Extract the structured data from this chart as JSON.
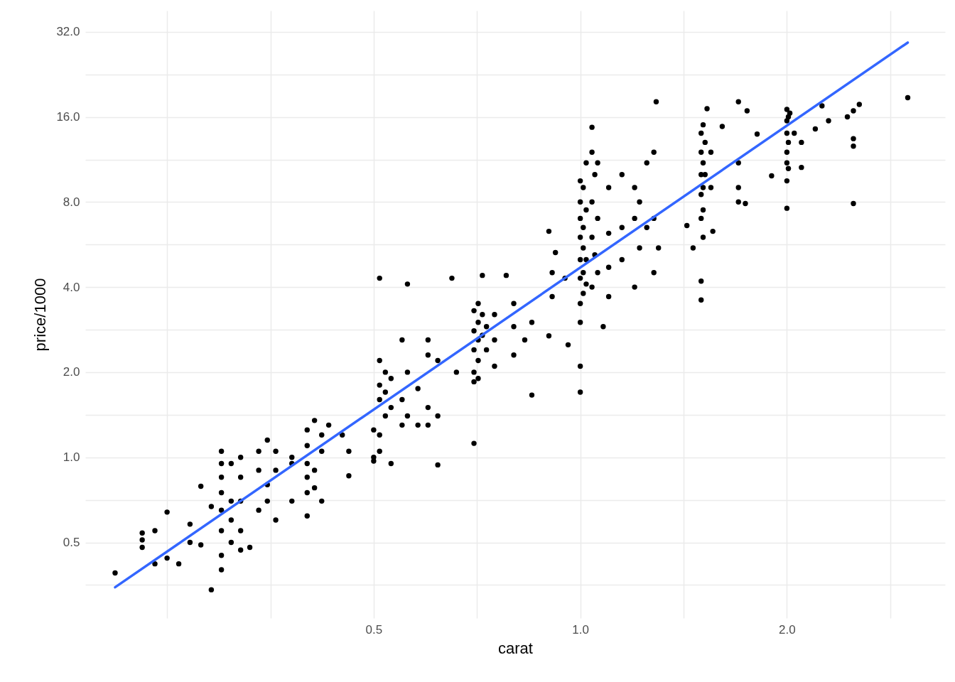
{
  "chart_data": {
    "type": "scatter",
    "xlabel": "carat",
    "ylabel": "price/1000",
    "log": "xy",
    "grid": true,
    "xlim": [
      0.19,
      3.4
    ],
    "ylim": [
      0.27,
      38
    ],
    "xticks": [
      {
        "value": 0.25,
        "label": null
      },
      {
        "value": 0.354,
        "label": null
      },
      {
        "value": 0.5,
        "label": "0.5"
      },
      {
        "value": 0.707,
        "label": null
      },
      {
        "value": 1,
        "label": "1.0"
      },
      {
        "value": 1.414,
        "label": null
      },
      {
        "value": 2,
        "label": "2.0"
      },
      {
        "value": 2.83,
        "label": null
      }
    ],
    "yticks": [
      {
        "value": 0.354,
        "label": null
      },
      {
        "value": 0.5,
        "label": "0.5"
      },
      {
        "value": 0.707,
        "label": null
      },
      {
        "value": 1,
        "label": "1.0"
      },
      {
        "value": 1.414,
        "label": null
      },
      {
        "value": 2,
        "label": "2.0"
      },
      {
        "value": 2.83,
        "label": null
      },
      {
        "value": 4,
        "label": "4.0"
      },
      {
        "value": 5.66,
        "label": null
      },
      {
        "value": 8,
        "label": "8.0"
      },
      {
        "value": 11.3,
        "label": null
      },
      {
        "value": 16,
        "label": "16.0"
      },
      {
        "value": 22.6,
        "label": null
      },
      {
        "value": 32,
        "label": "32.0"
      }
    ],
    "series": [
      {
        "marker": "circle",
        "color": "#000000",
        "x": [
          0.21,
          0.23,
          0.23,
          0.23,
          0.24,
          0.24,
          0.25,
          0.25,
          0.26,
          0.27,
          0.27,
          0.28,
          0.28,
          0.29,
          0.29,
          0.3,
          0.3,
          0.3,
          0.3,
          0.3,
          0.3,
          0.3,
          0.3,
          0.31,
          0.31,
          0.31,
          0.31,
          0.32,
          0.32,
          0.32,
          0.32,
          0.32,
          0.33,
          0.34,
          0.34,
          0.34,
          0.35,
          0.35,
          0.35,
          0.36,
          0.36,
          0.36,
          0.38,
          0.38,
          0.38,
          0.4,
          0.4,
          0.4,
          0.4,
          0.4,
          0.4,
          0.41,
          0.41,
          0.41,
          0.42,
          0.42,
          0.42,
          0.43,
          0.45,
          0.46,
          0.46,
          0.5,
          0.5,
          0.5,
          0.51,
          0.51,
          0.51,
          0.51,
          0.51,
          0.51,
          0.52,
          0.52,
          0.52,
          0.53,
          0.53,
          0.53,
          0.55,
          0.55,
          0.55,
          0.56,
          0.56,
          0.56,
          0.58,
          0.58,
          0.6,
          0.6,
          0.6,
          0.6,
          0.62,
          0.62,
          0.62,
          0.65,
          0.66,
          0.7,
          0.7,
          0.7,
          0.7,
          0.7,
          0.7,
          0.71,
          0.71,
          0.71,
          0.71,
          0.71,
          0.72,
          0.72,
          0.72,
          0.73,
          0.73,
          0.75,
          0.75,
          0.75,
          0.78,
          0.8,
          0.8,
          0.8,
          0.83,
          0.85,
          0.85,
          0.9,
          0.96,
          0.91,
          0.91,
          0.92,
          0.9,
          0.95,
          1.0,
          1.0,
          1.0,
          1.0,
          1.0,
          1.0,
          1.0,
          1.0,
          1.0,
          1.0,
          1.01,
          1.01,
          1.01,
          1.01,
          1.01,
          1.02,
          1.02,
          1.02,
          1.02,
          1.04,
          1.04,
          1.04,
          1.04,
          1.04,
          1.05,
          1.05,
          1.06,
          1.06,
          1.06,
          1.1,
          1.1,
          1.1,
          1.1,
          1.08,
          1.15,
          1.15,
          1.15,
          1.2,
          1.2,
          1.2,
          1.29,
          1.22,
          1.22,
          1.25,
          1.25,
          1.28,
          1.28,
          1.28,
          1.3,
          1.43,
          1.46,
          1.5,
          1.5,
          1.5,
          1.5,
          1.5,
          1.5,
          1.5,
          1.51,
          1.51,
          1.51,
          1.51,
          1.51,
          1.52,
          1.52,
          1.53,
          1.55,
          1.55,
          1.56,
          1.61,
          1.7,
          1.7,
          1.7,
          1.74,
          1.7,
          1.75,
          1.81,
          1.9,
          2.0,
          2.0,
          2.0,
          2.0,
          2.0,
          2.0,
          2.0,
          2.01,
          2.01,
          2.01,
          2.02,
          2.05,
          2.1,
          2.1,
          2.2,
          2.25,
          2.3,
          2.5,
          2.45,
          2.5,
          2.5,
          2.5,
          2.55,
          3.0
        ],
        "values": [
          0.39,
          0.51,
          0.48,
          0.54,
          0.55,
          0.42,
          0.64,
          0.44,
          0.42,
          0.58,
          0.5,
          0.79,
          0.49,
          0.34,
          0.67,
          1.05,
          0.95,
          0.85,
          0.75,
          0.65,
          0.55,
          0.45,
          0.4,
          0.6,
          0.95,
          0.5,
          0.7,
          1.0,
          0.85,
          0.7,
          0.55,
          0.47,
          0.48,
          0.65,
          0.9,
          1.05,
          1.15,
          0.8,
          0.7,
          1.05,
          0.9,
          0.6,
          0.7,
          0.95,
          1.0,
          1.25,
          1.1,
          0.95,
          0.85,
          0.62,
          0.75,
          1.35,
          0.9,
          0.78,
          1.2,
          1.05,
          0.7,
          1.3,
          1.2,
          1.05,
          0.86,
          1.0,
          1.25,
          0.97,
          4.3,
          2.2,
          1.8,
          1.6,
          1.2,
          1.05,
          2.0,
          1.7,
          1.4,
          1.9,
          1.5,
          0.95,
          2.6,
          1.6,
          1.3,
          4.1,
          2.0,
          1.4,
          1.75,
          1.3,
          2.6,
          2.3,
          1.5,
          1.3,
          2.2,
          1.4,
          0.94,
          4.3,
          2.0,
          3.3,
          2.8,
          2.4,
          2.0,
          1.85,
          1.12,
          3.5,
          3.0,
          2.6,
          2.2,
          1.9,
          4.4,
          3.2,
          2.7,
          2.9,
          2.4,
          3.2,
          2.6,
          2.1,
          4.4,
          3.5,
          2.9,
          2.3,
          2.6,
          3.0,
          1.66,
          2.69,
          2.5,
          4.5,
          3.7,
          5.3,
          6.3,
          4.3,
          9.5,
          8.0,
          7.0,
          6.0,
          5.0,
          4.3,
          3.5,
          3.0,
          2.1,
          1.7,
          9.0,
          6.5,
          5.5,
          4.5,
          3.8,
          11,
          7.5,
          5.0,
          4.1,
          14.7,
          12,
          8,
          6,
          4,
          10,
          5.2,
          11,
          7,
          4.5,
          9,
          6.2,
          4.7,
          3.7,
          2.9,
          10,
          6.5,
          5.0,
          9,
          7,
          4.0,
          18.1,
          8,
          5.5,
          11,
          6.5,
          12,
          7,
          4.5,
          5.5,
          6.6,
          5.5,
          14,
          12,
          10,
          8.5,
          7,
          4.2,
          3.6,
          15,
          11,
          9,
          7.5,
          6,
          13,
          10,
          17.1,
          12,
          9,
          6.3,
          14.8,
          11,
          9,
          8,
          7.9,
          18.1,
          16.8,
          13.9,
          9.9,
          17,
          15.5,
          14,
          12,
          11,
          9.5,
          7.6,
          16,
          13,
          10.5,
          16.5,
          14,
          13,
          10.6,
          14.5,
          17.5,
          15.5,
          16.8,
          16,
          13.4,
          12.6,
          7.9,
          17.7,
          18.7
        ]
      },
      {
        "type": "line",
        "color": "#3366ff",
        "x": [
          0.21,
          3.0
        ],
        "values": [
          0.347,
          29.3
        ]
      }
    ]
  }
}
